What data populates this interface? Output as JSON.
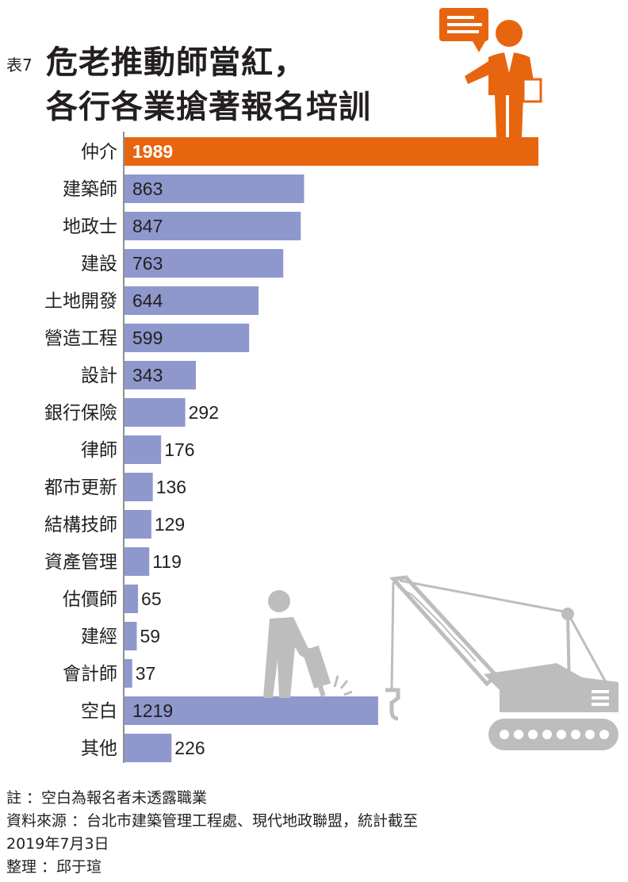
{
  "header": {
    "tag": "表7",
    "title_line1": "危老推動師當紅，",
    "title_line2": "各行各業搶著報名培訓"
  },
  "colors": {
    "highlight": "#e8650f",
    "bar": "#8e98cc",
    "highlight_label": "#ffffff",
    "label": "#231f20",
    "illustration_gray": "#bdbdbd"
  },
  "icons": [
    "presenter-icon",
    "speech-bubble-icon",
    "construction-worker-icon",
    "jackhammer-icon",
    "crane-icon"
  ],
  "chart_data": {
    "type": "bar",
    "orientation": "horizontal",
    "categories": [
      "仲介",
      "建築師",
      "地政士",
      "建設",
      "土地開發",
      "營造工程",
      "設計",
      "銀行保險",
      "律師",
      "都市更新",
      "結構技師",
      "資產管理",
      "估價師",
      "建經",
      "會計師",
      "空白",
      "其他"
    ],
    "values": [
      1989,
      863,
      847,
      763,
      644,
      599,
      343,
      292,
      176,
      136,
      129,
      119,
      65,
      59,
      37,
      1219,
      226
    ],
    "value_labels": [
      "1989",
      "863",
      "847",
      "763",
      "644",
      "599",
      "343",
      "292",
      "176",
      "136",
      "129",
      "119",
      "65",
      "59",
      "37",
      "1219",
      "226"
    ],
    "highlight_index": 0,
    "xlim": [
      0,
      1989
    ],
    "grid": false,
    "legend": "none"
  },
  "footer": {
    "note": "註 ：空白為報名者未透露職業",
    "source_line1": "資料來源 ：台北市建築管理工程處、現代地政聯盟，統計截至",
    "source_line2": "2019年7月3日",
    "editor": "整理 ：邱于瑄"
  }
}
